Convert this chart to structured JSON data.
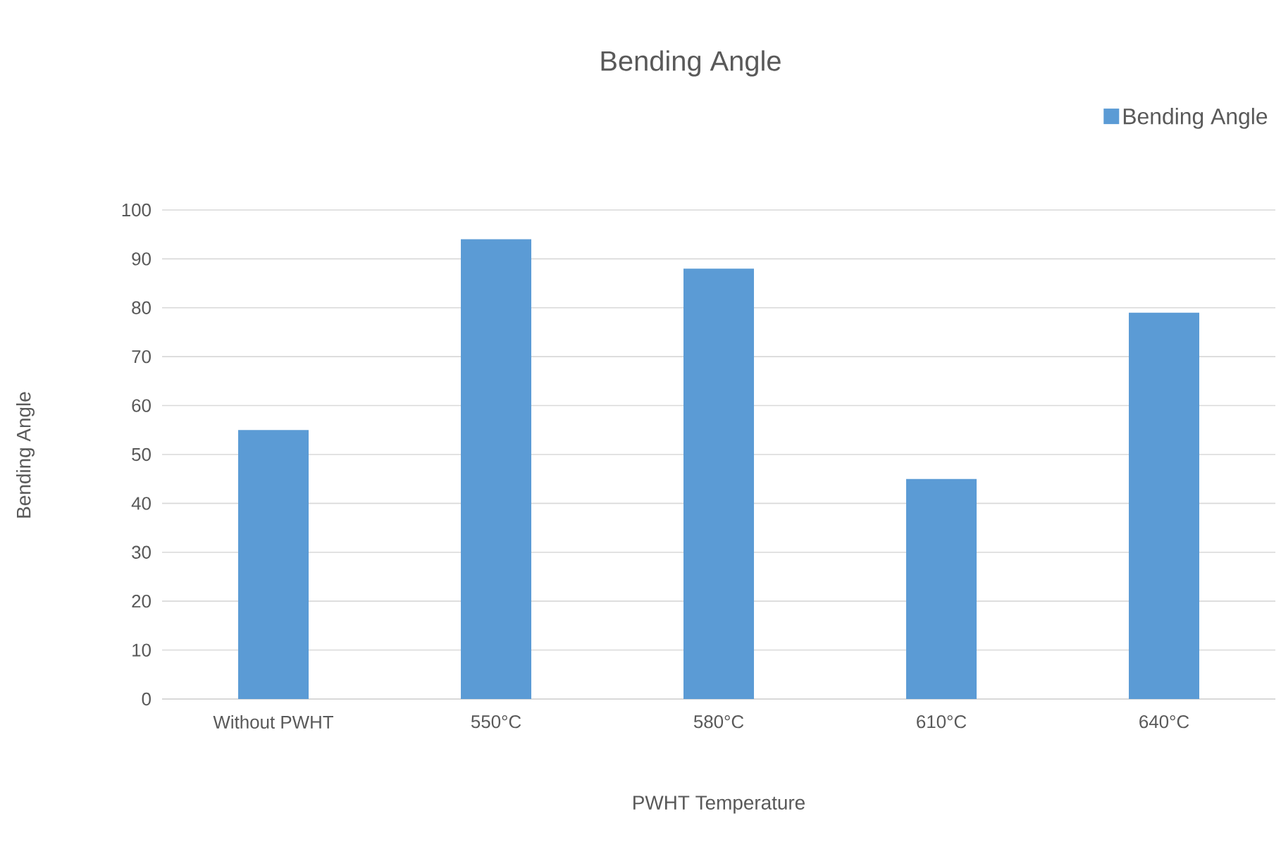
{
  "chart_data": {
    "type": "bar",
    "title": "Bending Angle",
    "xlabel": "PWHT Temperature",
    "ylabel": "Bending Angle",
    "categories": [
      "Without PWHT",
      "550°C",
      "580°C",
      "610°C",
      "640°C"
    ],
    "series": [
      {
        "name": "Bending Angle",
        "color": "#5b9bd5",
        "values": [
          55,
          94,
          88,
          45,
          79
        ]
      }
    ],
    "ylim": [
      0,
      100
    ],
    "yticks": [
      0,
      10,
      20,
      30,
      40,
      50,
      60,
      70,
      80,
      90,
      100
    ],
    "grid": "y",
    "legend": "top right"
  }
}
